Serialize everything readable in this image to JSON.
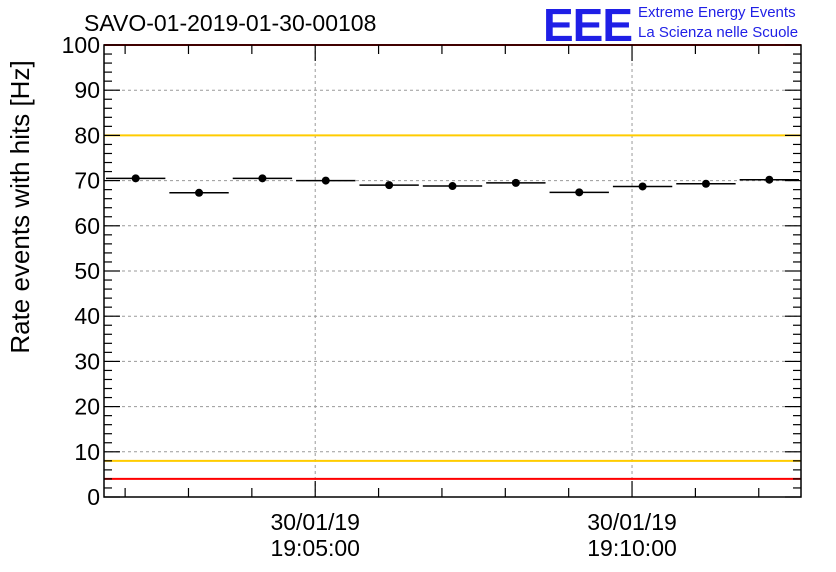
{
  "title": "SAVO-01-2019-01-30-00108",
  "logo": {
    "mark": "EEE",
    "line1": "Extreme Energy Events",
    "line2": "La Scienza nelle Scuole"
  },
  "colors": {
    "axis": "#000000",
    "grid": "#9a9a9a",
    "red_line": "#ff0000",
    "yellow_line": "#ffcc00",
    "logo": "#1f1fe6",
    "marker": "#000000"
  },
  "chart_data": {
    "type": "scatter",
    "title": "SAVO-01-2019-01-30-00108",
    "ylabel": "Rate events with hits [Hz]",
    "xlabel": "",
    "ylim": [
      0,
      100
    ],
    "yticks": [
      0,
      10,
      20,
      30,
      40,
      50,
      60,
      70,
      80,
      90,
      100
    ],
    "ytick_labels": [
      "0",
      "10",
      "20",
      "30",
      "40",
      "50",
      "60",
      "70",
      "80",
      "90",
      "100"
    ],
    "xlim_seconds": [
      0,
      660
    ],
    "xticks": [
      {
        "t": 200,
        "label": [
          "30/01/19",
          "19:05:00"
        ]
      },
      {
        "t": 500,
        "label": [
          "30/01/19",
          "19:10:00"
        ]
      }
    ],
    "bin_width_seconds": 60,
    "points": [
      {
        "t": 30,
        "y": 70.5
      },
      {
        "t": 90,
        "y": 67.3
      },
      {
        "t": 150,
        "y": 70.5
      },
      {
        "t": 210,
        "y": 70.0
      },
      {
        "t": 270,
        "y": 69.0
      },
      {
        "t": 330,
        "y": 68.8
      },
      {
        "t": 390,
        "y": 69.5
      },
      {
        "t": 450,
        "y": 67.4
      },
      {
        "t": 510,
        "y": 68.7
      },
      {
        "t": 570,
        "y": 69.3
      },
      {
        "t": 630,
        "y": 70.2
      }
    ],
    "reference_lines": [
      {
        "y": 100,
        "color": "red"
      },
      {
        "y": 80,
        "color": "yellow"
      },
      {
        "y": 8,
        "color": "yellow"
      },
      {
        "y": 4,
        "color": "red"
      }
    ],
    "grid": true
  }
}
